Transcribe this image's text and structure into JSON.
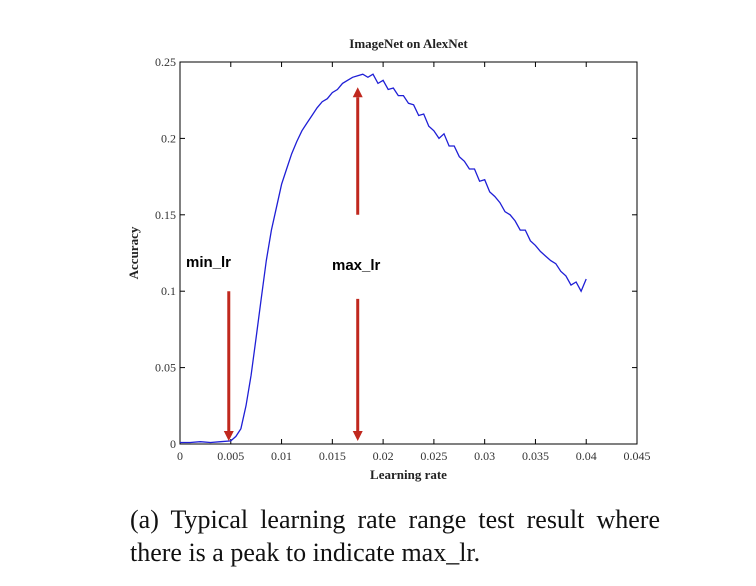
{
  "chart_data": {
    "type": "line",
    "title": "ImageNet on AlexNet",
    "xlabel": "Learning rate",
    "ylabel": "Accuracy",
    "xlim": [
      0,
      0.045
    ],
    "ylim": [
      0,
      0.25
    ],
    "xticks": [
      "0",
      "0.005",
      "0.01",
      "0.015",
      "0.02",
      "0.025",
      "0.03",
      "0.035",
      "0.04",
      "0.045"
    ],
    "yticks": [
      "0",
      "0.05",
      "0.1",
      "0.15",
      "0.2",
      "0.25"
    ],
    "grid": false,
    "line_color": "#1f1fd6",
    "arrow_color": "#c0281e",
    "series": [
      {
        "x": [
          0,
          0.001,
          0.002,
          0.003,
          0.004,
          0.005,
          0.0055,
          0.006,
          0.0065,
          0.007,
          0.0075,
          0.008,
          0.0085,
          0.009,
          0.0095,
          0.01,
          0.0105,
          0.011,
          0.0115,
          0.012,
          0.0125,
          0.013,
          0.0135,
          0.014,
          0.0145,
          0.015,
          0.0155,
          0.016,
          0.0165,
          0.017,
          0.0175,
          0.018,
          0.0185,
          0.019,
          0.0195,
          0.02,
          0.0205,
          0.021,
          0.0215,
          0.022,
          0.0225,
          0.023,
          0.0235,
          0.024,
          0.0245,
          0.025,
          0.0255,
          0.026,
          0.0265,
          0.027,
          0.0275,
          0.028,
          0.0285,
          0.029,
          0.0295,
          0.03,
          0.0305,
          0.031,
          0.0315,
          0.032,
          0.0325,
          0.033,
          0.0335,
          0.034,
          0.0345,
          0.035,
          0.0355,
          0.036,
          0.0365,
          0.037,
          0.0375,
          0.038,
          0.0385,
          0.039,
          0.0395,
          0.04
        ],
        "values": [
          0.001,
          0.001,
          0.0015,
          0.001,
          0.0015,
          0.002,
          0.005,
          0.01,
          0.025,
          0.045,
          0.07,
          0.095,
          0.12,
          0.14,
          0.155,
          0.17,
          0.18,
          0.19,
          0.198,
          0.205,
          0.21,
          0.215,
          0.22,
          0.224,
          0.226,
          0.23,
          0.232,
          0.236,
          0.238,
          0.24,
          0.241,
          0.242,
          0.24,
          0.242,
          0.236,
          0.238,
          0.232,
          0.233,
          0.228,
          0.228,
          0.223,
          0.222,
          0.215,
          0.216,
          0.208,
          0.205,
          0.2,
          0.203,
          0.195,
          0.195,
          0.188,
          0.185,
          0.18,
          0.18,
          0.172,
          0.173,
          0.165,
          0.162,
          0.158,
          0.152,
          0.15,
          0.146,
          0.14,
          0.14,
          0.133,
          0.13,
          0.126,
          0.123,
          0.12,
          0.118,
          0.113,
          0.11,
          0.104,
          0.106,
          0.1,
          0.108
        ]
      }
    ],
    "annotations": [
      {
        "text": "min_lr",
        "x": 0.005,
        "y_from": 0.1,
        "y_to": 0.002
      },
      {
        "text": "max_lr",
        "x": 0.0175,
        "y_from_low": 0.095,
        "y_to_low": 0.0,
        "y_from_high": 0.15,
        "y_to_high": 0.24
      }
    ]
  },
  "caption": "(a) Typical learning rate range test result where there is a peak to indicate max_lr."
}
